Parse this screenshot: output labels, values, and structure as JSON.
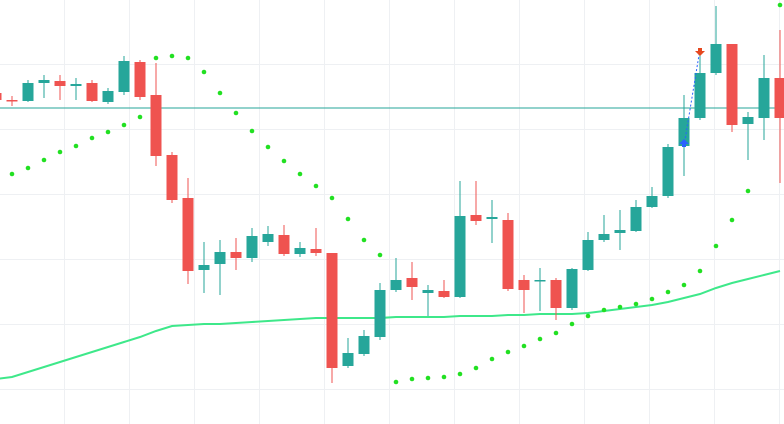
{
  "chart_data": {
    "type": "candlestick",
    "ylim": [
      0,
      424
    ],
    "up_color": "#26a69a",
    "down_color": "#ef5350",
    "open": [
      331,
      324,
      323,
      341,
      343,
      338,
      341,
      322,
      332,
      362,
      329,
      269,
      226,
      154,
      160,
      172,
      166,
      182,
      189,
      170,
      175,
      171,
      58,
      70,
      87,
      134,
      146,
      131,
      133,
      127,
      209,
      205,
      204,
      144,
      143,
      144,
      116,
      154,
      184,
      191,
      193,
      217,
      228,
      278,
      306,
      351,
      380,
      300,
      306,
      346
    ],
    "high": [
      336,
      328,
      344,
      349,
      349,
      346,
      344,
      336,
      368,
      364,
      361,
      272,
      246,
      182,
      184,
      186,
      196,
      198,
      199,
      182,
      196,
      171,
      86,
      94,
      141,
      166,
      162,
      139,
      144,
      243,
      243,
      224,
      211,
      149,
      156,
      146,
      156,
      192,
      209,
      214,
      224,
      237,
      280,
      329,
      372,
      418,
      380,
      312,
      369,
      394
    ],
    "low": [
      321,
      318,
      322,
      326,
      324,
      324,
      322,
      320,
      329,
      324,
      258,
      221,
      140,
      131,
      129,
      154,
      162,
      178,
      168,
      167,
      168,
      41,
      56,
      68,
      84,
      132,
      124,
      108,
      126,
      126,
      199,
      181,
      133,
      111,
      113,
      104,
      114,
      153,
      182,
      174,
      192,
      216,
      226,
      248,
      304,
      349,
      292,
      264,
      284,
      241
    ],
    "close": [
      324,
      323,
      341,
      344,
      338,
      340,
      323,
      333,
      363,
      327,
      268,
      224,
      153,
      159,
      172,
      166,
      188,
      190,
      170,
      176,
      171,
      56,
      71,
      88,
      134,
      144,
      137,
      134,
      127,
      208,
      203,
      207,
      135,
      134,
      144,
      116,
      155,
      184,
      190,
      194,
      217,
      228,
      277,
      306,
      351,
      380,
      299,
      307,
      346,
      306
    ],
    "overlays": [
      {
        "kind": "moving-average",
        "color": "#3ee88a",
        "values": [
          45,
          47,
          52,
          57,
          62,
          67,
          72,
          77,
          82,
          87,
          93,
          98,
          99,
          100,
          100,
          101,
          102,
          103,
          104,
          105,
          106,
          106,
          106,
          106,
          106,
          107,
          107,
          107,
          107,
          108,
          108,
          108,
          109,
          109,
          110,
          110,
          110,
          111,
          113,
          115,
          117,
          119,
          122,
          126,
          130,
          136,
          141,
          145,
          149,
          153
        ]
      },
      {
        "kind": "parabolic-sar",
        "color": "#22e022",
        "values": [
          null,
          250,
          256,
          264,
          272,
          278,
          286,
          292,
          299,
          307,
          366,
          368,
          366,
          352,
          331,
          311,
          293,
          277,
          263,
          250,
          238,
          226,
          205,
          184,
          169,
          42,
          45,
          46,
          47,
          50,
          56,
          65,
          72,
          78,
          85,
          91,
          100,
          108,
          114,
          117,
          120,
          125,
          132,
          139,
          153,
          178,
          204,
          233,
          null,
          419
        ]
      }
    ],
    "price_line": {
      "value": 316,
      "color": "#26a69a"
    },
    "signals": [
      {
        "kind": "buy",
        "index": 43,
        "value": 278,
        "color": "#2962ff"
      },
      {
        "kind": "sell",
        "index": 44,
        "value": 375,
        "color": "#e5481f"
      }
    ]
  }
}
